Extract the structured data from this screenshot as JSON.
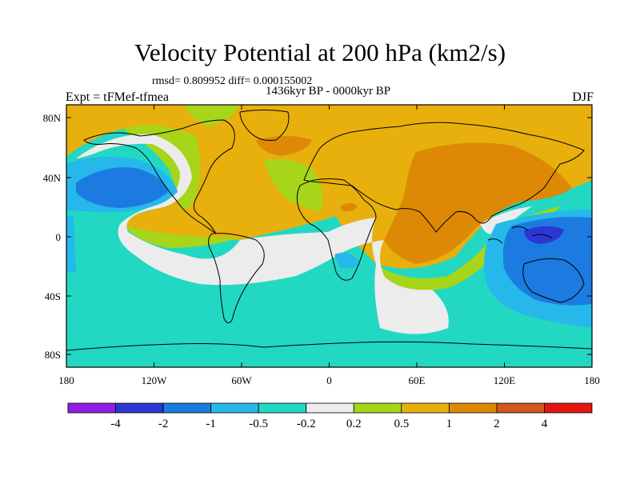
{
  "title": "Velocity Potential at 200 hPa (km2/s)",
  "stats": "rmsd= 0.809952 diff= 0.000155002",
  "period": "1436kyr BP - 0000kyr BP",
  "experiment": "Expt = tFMef-tfmea",
  "season": "DJF",
  "lat_ticks": [
    "80N",
    "40N",
    "0",
    "40S",
    "80S"
  ],
  "lon_ticks": [
    "180",
    "120W",
    "60W",
    "0",
    "60E",
    "120E",
    "180"
  ],
  "colorbar": {
    "colors": [
      "#8f1ee6",
      "#2c36d4",
      "#1c7be0",
      "#26b8ea",
      "#22d8c2",
      "#ececec",
      "#a6d51a",
      "#e7b00c",
      "#dd8906",
      "#d0561a",
      "#e51610"
    ],
    "labels": [
      "-4",
      "-2",
      "-1",
      "-0.5",
      "-0.2",
      "0.2",
      "0.5",
      "1",
      "2",
      "4"
    ]
  },
  "chart_data": {
    "type": "map",
    "projection": "cylindrical equidistant",
    "variable": "Velocity Potential at 200 hPa",
    "units": "km2/s",
    "lon_range": [
      -180,
      180
    ],
    "lat_range": [
      -90,
      90
    ],
    "contour_levels": [
      -4,
      -2,
      -1,
      -0.5,
      -0.2,
      0.2,
      0.5,
      1,
      2,
      4
    ],
    "regions": [
      {
        "name": "Eurasia / Indian Ocean maximum",
        "value_range": "1 to 2"
      },
      {
        "name": "North Atlantic / Africa / Arctic",
        "value_range": "0.5 to 1"
      },
      {
        "name": "North Pacific minimum",
        "value_range": "-2 to -1"
      },
      {
        "name": "Maritime Continent minimum",
        "value_range": "-2 to -4"
      },
      {
        "name": "Southern Ocean",
        "value_range": "-0.5 to -0.2"
      }
    ]
  }
}
